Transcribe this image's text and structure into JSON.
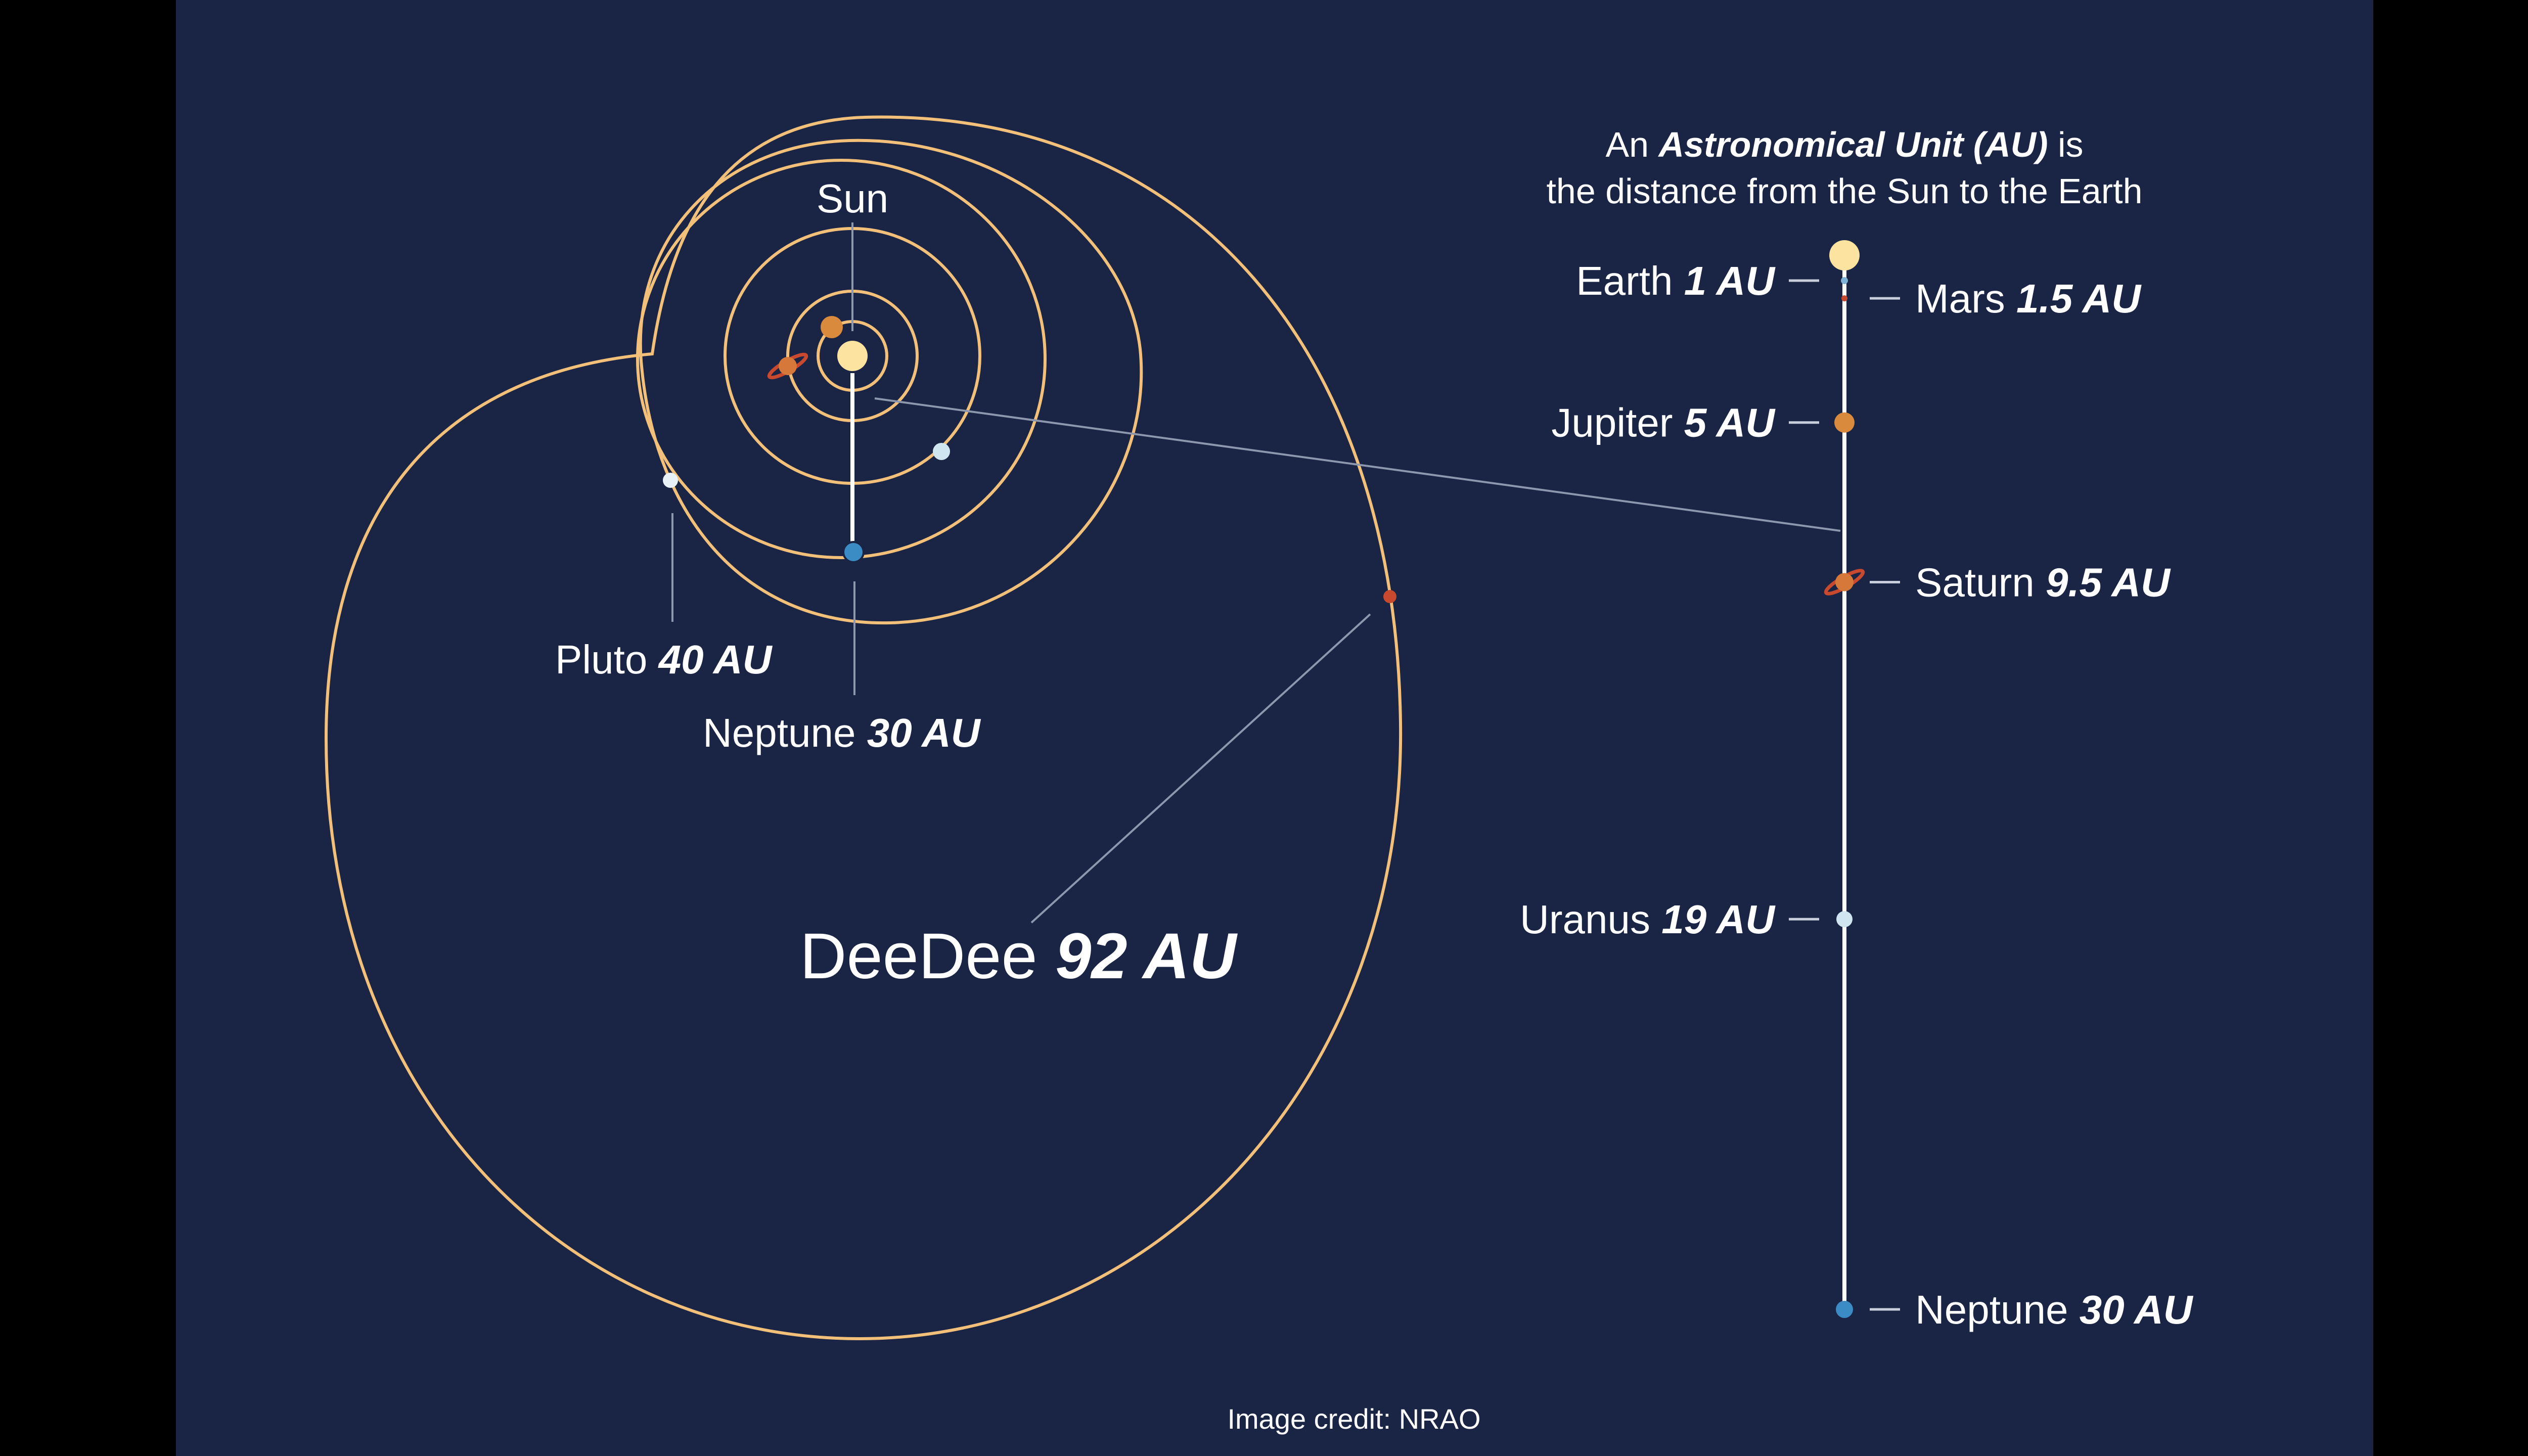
{
  "colors": {
    "page_bg": "#000000",
    "panel_bg": "#1a2444",
    "orbit": "#f3c07a",
    "leader": "#8d97ad",
    "scale_line": "#ffffff",
    "sun": "#fde3a0",
    "mars": "#c9492f",
    "earth": "#7fb2d6",
    "jupiter": "#d98a3d",
    "saturn": "#d6783a",
    "uranus": "#cfe6f0",
    "neptune": "#3b8bc4",
    "pluto": "#e8f1f5",
    "deedee": "#c9492f"
  },
  "diagram": {
    "sun_label": "Sun",
    "pluto": {
      "name": "Pluto",
      "distance": "40 AU"
    },
    "neptune": {
      "name": "Neptune",
      "distance": "30 AU"
    },
    "deedee": {
      "name": "DeeDee",
      "distance": "92 AU"
    }
  },
  "scale": {
    "note_line1_prefix": "An ",
    "note_line1_bold": "Astronomical Unit (AU)",
    "note_line1_suffix": " is",
    "note_line2": "the distance from the Sun to the Earth",
    "planets": [
      {
        "name": "Earth",
        "distance": "1 AU",
        "au": 1,
        "side": "left",
        "icon": "earth-dot"
      },
      {
        "name": "Mars",
        "distance": "1.5 AU",
        "au": 1.5,
        "side": "right",
        "icon": "mars-dot"
      },
      {
        "name": "Jupiter",
        "distance": "5 AU",
        "au": 5,
        "side": "left",
        "icon": "jupiter-dot"
      },
      {
        "name": "Saturn",
        "distance": "9.5 AU",
        "au": 9.5,
        "side": "right",
        "icon": "saturn-ringed"
      },
      {
        "name": "Uranus",
        "distance": "19 AU",
        "au": 19,
        "side": "left",
        "icon": "uranus-dot"
      },
      {
        "name": "Neptune",
        "distance": "30 AU",
        "au": 30,
        "side": "right",
        "icon": "neptune-dot"
      }
    ]
  },
  "credit": "Image credit: NRAO"
}
